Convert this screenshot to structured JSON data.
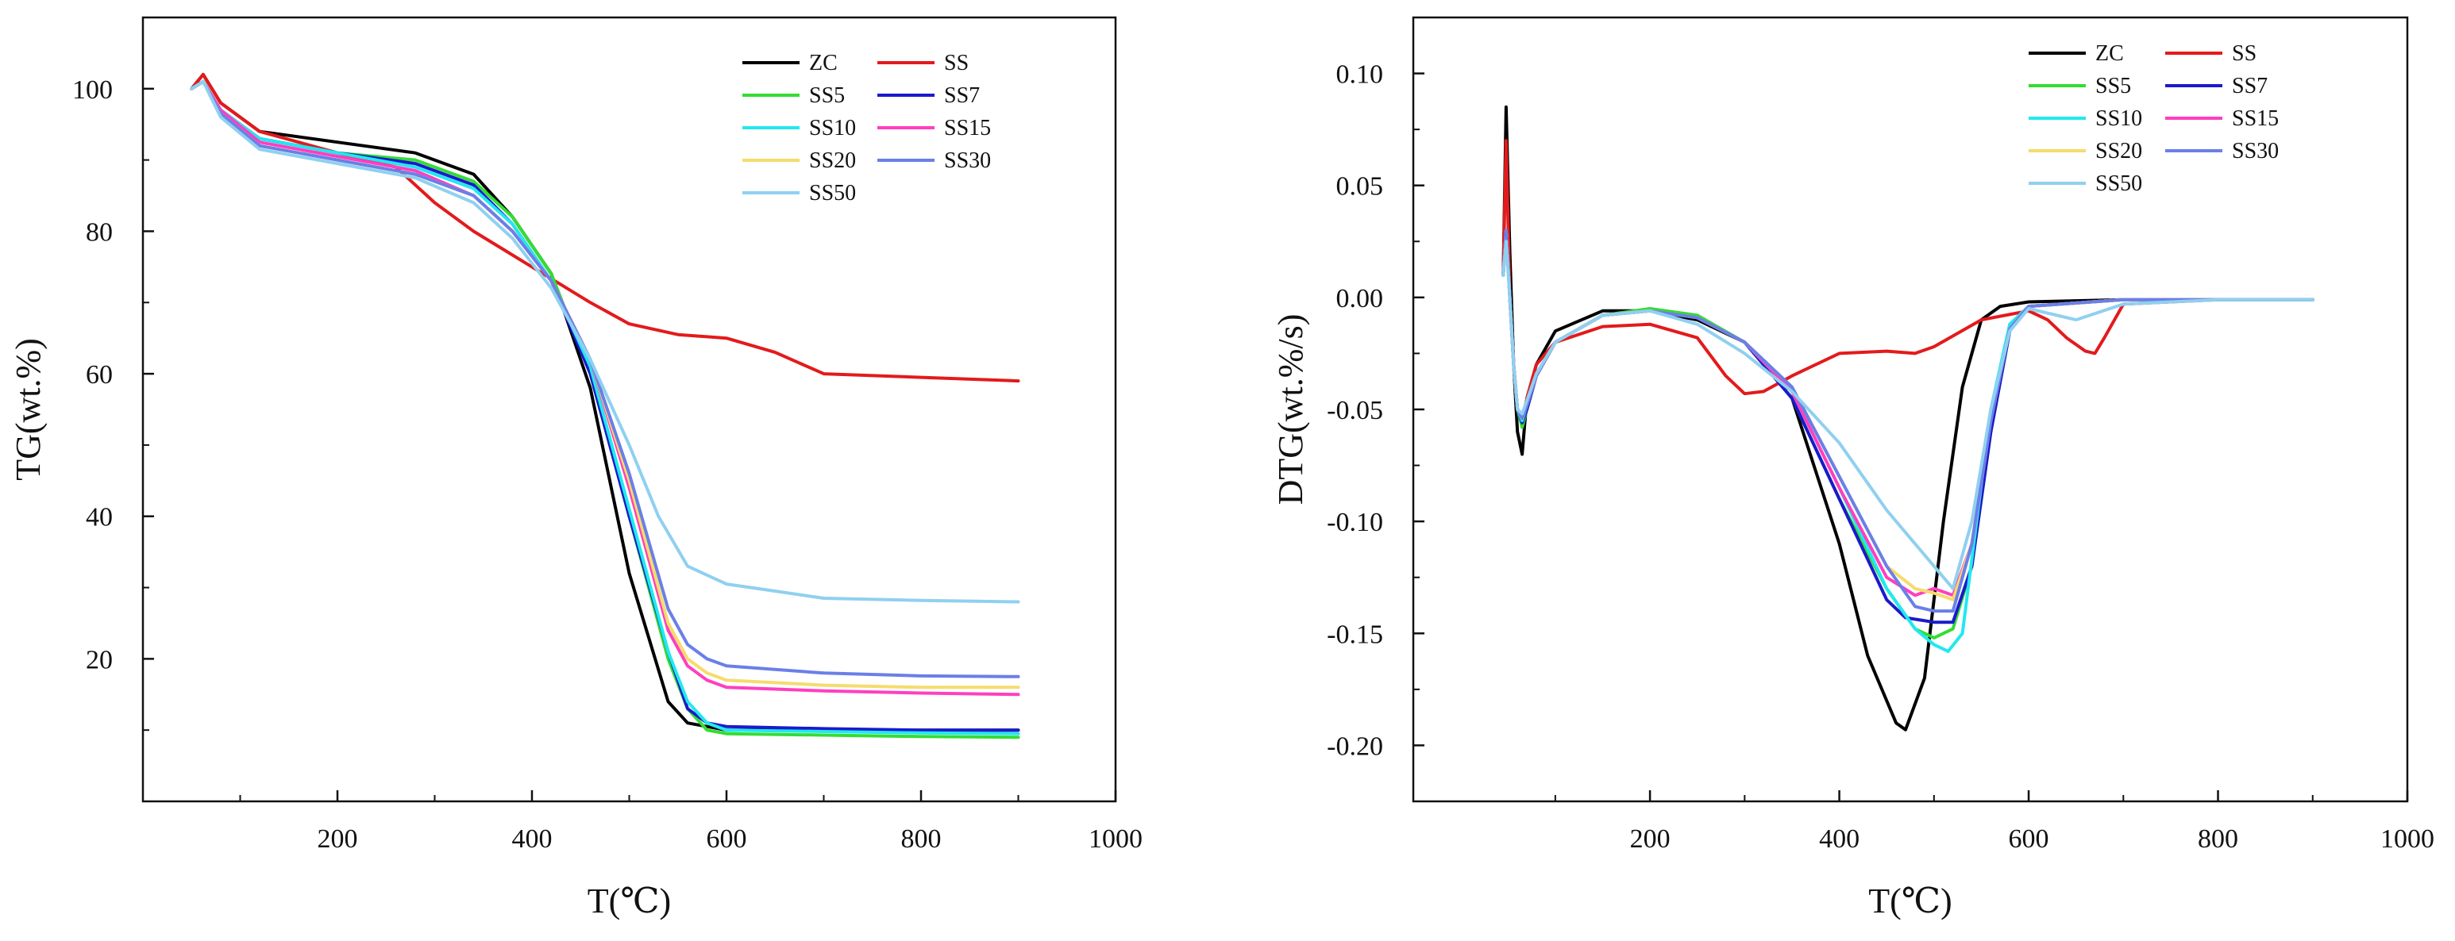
{
  "chart_data": [
    {
      "type": "line",
      "title": "",
      "xlabel": "T(℃)",
      "ylabel": "TG(wt.%)",
      "xlim": [
        0,
        1000
      ],
      "ylim": [
        0,
        110
      ],
      "xticks": [
        200,
        400,
        600,
        800,
        1000
      ],
      "yticks": [
        20,
        40,
        60,
        80,
        100
      ],
      "xtick_labels": [
        "200",
        "400",
        "600",
        "800",
        "1000"
      ],
      "ytick_labels": [
        "20",
        "40",
        "60",
        "80",
        "100"
      ],
      "grid": false,
      "legend_position": "top-right",
      "series": [
        {
          "name": "ZC",
          "color": "#000000",
          "x": [
            50,
            62,
            80,
            120,
            200,
            280,
            340,
            380,
            420,
            460,
            500,
            540,
            560,
            580,
            600,
            700,
            800,
            900
          ],
          "y": [
            100,
            102,
            98,
            94,
            92.5,
            91,
            88,
            82,
            74,
            58,
            32,
            14,
            11,
            10.5,
            10,
            10,
            10,
            10
          ]
        },
        {
          "name": "SS",
          "color": "#e31a1c",
          "x": [
            50,
            62,
            80,
            120,
            200,
            260,
            300,
            340,
            400,
            460,
            500,
            550,
            600,
            650,
            700,
            800,
            900
          ],
          "y": [
            100,
            102,
            98,
            94,
            91,
            89,
            84,
            80,
            75,
            70,
            67,
            65.5,
            65,
            63,
            60,
            59.5,
            59
          ]
        },
        {
          "name": "SS5",
          "color": "#33dd33",
          "x": [
            50,
            62,
            80,
            120,
            200,
            280,
            340,
            380,
            420,
            460,
            500,
            540,
            560,
            580,
            600,
            700,
            800,
            900
          ],
          "y": [
            100,
            101,
            97,
            93,
            91,
            90,
            87,
            82,
            74,
            60,
            40,
            20,
            13,
            10,
            9.5,
            9.3,
            9.1,
            9
          ]
        },
        {
          "name": "SS7",
          "color": "#1a1acc",
          "x": [
            50,
            62,
            80,
            120,
            200,
            280,
            340,
            380,
            420,
            460,
            500,
            540,
            560,
            580,
            600,
            700,
            800,
            900
          ],
          "y": [
            100,
            101,
            97,
            93,
            91,
            89.5,
            86.5,
            81,
            73,
            60,
            40,
            21,
            13,
            11,
            10.5,
            10.2,
            10,
            10
          ]
        },
        {
          "name": "SS10",
          "color": "#22e8f0",
          "x": [
            50,
            62,
            80,
            120,
            200,
            280,
            340,
            380,
            420,
            460,
            500,
            540,
            560,
            580,
            600,
            700,
            800,
            900
          ],
          "y": [
            100,
            101,
            97,
            93,
            91,
            89,
            86,
            81,
            73,
            61,
            41,
            21,
            14,
            11,
            10,
            9.8,
            9.6,
            9.5
          ]
        },
        {
          "name": "SS15",
          "color": "#ff3fbf",
          "x": [
            50,
            62,
            80,
            120,
            200,
            280,
            340,
            380,
            420,
            460,
            500,
            540,
            560,
            580,
            600,
            700,
            800,
            900
          ],
          "y": [
            100,
            101,
            97,
            92.5,
            90.5,
            88.5,
            85,
            80,
            73,
            62,
            44,
            24,
            19,
            17,
            16,
            15.5,
            15.2,
            15
          ]
        },
        {
          "name": "SS20",
          "color": "#f5dc6c",
          "x": [
            50,
            62,
            80,
            120,
            200,
            280,
            340,
            380,
            420,
            460,
            500,
            540,
            560,
            580,
            600,
            700,
            800,
            900
          ],
          "y": [
            100,
            101,
            96.5,
            92,
            90,
            88,
            85,
            80,
            73,
            62,
            45,
            25,
            20,
            18,
            17,
            16.3,
            16,
            16
          ]
        },
        {
          "name": "SS30",
          "color": "#6a7fe8",
          "x": [
            50,
            62,
            80,
            120,
            200,
            280,
            340,
            380,
            420,
            460,
            500,
            540,
            560,
            580,
            600,
            700,
            800,
            900
          ],
          "y": [
            100,
            101,
            96.5,
            92,
            90,
            88,
            85,
            80,
            73,
            62,
            46,
            27,
            22,
            20,
            19,
            18,
            17.6,
            17.5
          ]
        },
        {
          "name": "SS50",
          "color": "#8fd0f0",
          "x": [
            50,
            62,
            80,
            120,
            200,
            280,
            340,
            380,
            420,
            460,
            500,
            530,
            560,
            600,
            650,
            700,
            800,
            900
          ],
          "y": [
            100,
            101,
            96,
            91.5,
            89.5,
            87.5,
            84,
            79,
            72,
            62,
            50,
            40,
            33,
            30.5,
            29.5,
            28.5,
            28.2,
            28
          ]
        }
      ]
    },
    {
      "type": "line",
      "title": "",
      "xlabel": "T(℃)",
      "ylabel": "DTG(wt.%/s)",
      "xlim": [
        -50,
        1000
      ],
      "ylim": [
        -0.225,
        0.125
      ],
      "xticks": [
        200,
        400,
        600,
        800,
        1000
      ],
      "yticks": [
        -0.2,
        -0.15,
        -0.1,
        -0.05,
        0.0,
        0.05,
        0.1
      ],
      "xtick_labels": [
        "200",
        "400",
        "600",
        "800",
        "1000"
      ],
      "ytick_labels": [
        "-0.20",
        "-0.15",
        "-0.10",
        "-0.05",
        "0.00",
        "0.05",
        "0.10"
      ],
      "grid": false,
      "legend_position": "top-right",
      "series": [
        {
          "name": "ZC",
          "color": "#000000",
          "x": [
            45,
            48,
            52,
            56,
            60,
            65,
            70,
            80,
            100,
            150,
            200,
            250,
            300,
            350,
            400,
            430,
            460,
            470,
            490,
            510,
            530,
            550,
            570,
            600,
            700,
            800,
            900
          ],
          "y": [
            0.01,
            0.085,
            0.02,
            -0.03,
            -0.06,
            -0.07,
            -0.045,
            -0.03,
            -0.015,
            -0.006,
            -0.006,
            -0.01,
            -0.02,
            -0.045,
            -0.11,
            -0.16,
            -0.19,
            -0.193,
            -0.17,
            -0.1,
            -0.04,
            -0.01,
            -0.004,
            -0.002,
            -0.001,
            -0.001,
            -0.001
          ]
        },
        {
          "name": "SS",
          "color": "#e31a1c",
          "x": [
            45,
            48,
            52,
            56,
            60,
            65,
            70,
            80,
            100,
            150,
            200,
            250,
            280,
            300,
            320,
            350,
            400,
            450,
            480,
            500,
            550,
            600,
            620,
            640,
            660,
            670,
            680,
            700,
            800,
            900
          ],
          "y": [
            0.01,
            0.07,
            0.0,
            -0.03,
            -0.05,
            -0.055,
            -0.045,
            -0.03,
            -0.02,
            -0.013,
            -0.012,
            -0.018,
            -0.035,
            -0.043,
            -0.042,
            -0.035,
            -0.025,
            -0.024,
            -0.025,
            -0.022,
            -0.01,
            -0.006,
            -0.01,
            -0.018,
            -0.024,
            -0.025,
            -0.018,
            -0.003,
            -0.001,
            -0.001
          ]
        },
        {
          "name": "SS5",
          "color": "#33dd33",
          "x": [
            45,
            48,
            52,
            56,
            60,
            65,
            70,
            80,
            100,
            150,
            200,
            250,
            300,
            350,
            400,
            450,
            480,
            500,
            520,
            540,
            560,
            580,
            600,
            700,
            800,
            900
          ],
          "y": [
            0.01,
            0.03,
            0.0,
            -0.03,
            -0.05,
            -0.058,
            -0.05,
            -0.035,
            -0.02,
            -0.008,
            -0.005,
            -0.008,
            -0.02,
            -0.045,
            -0.09,
            -0.13,
            -0.148,
            -0.152,
            -0.148,
            -0.12,
            -0.06,
            -0.015,
            -0.004,
            -0.001,
            -0.001,
            -0.001
          ]
        },
        {
          "name": "SS7",
          "color": "#1a1acc",
          "x": [
            45,
            48,
            52,
            56,
            60,
            65,
            70,
            80,
            100,
            150,
            200,
            250,
            300,
            350,
            400,
            450,
            470,
            500,
            520,
            540,
            560,
            580,
            600,
            700,
            800,
            900
          ],
          "y": [
            0.01,
            0.03,
            0.0,
            -0.03,
            -0.05,
            -0.056,
            -0.05,
            -0.035,
            -0.02,
            -0.008,
            -0.006,
            -0.009,
            -0.02,
            -0.045,
            -0.09,
            -0.135,
            -0.143,
            -0.145,
            -0.145,
            -0.12,
            -0.06,
            -0.015,
            -0.004,
            -0.001,
            -0.001,
            -0.001
          ]
        },
        {
          "name": "SS10",
          "color": "#22e8f0",
          "x": [
            45,
            48,
            52,
            56,
            60,
            65,
            70,
            80,
            100,
            150,
            200,
            250,
            300,
            350,
            400,
            450,
            480,
            500,
            515,
            530,
            545,
            560,
            580,
            600,
            700,
            800,
            900
          ],
          "y": [
            0.01,
            0.03,
            0.0,
            -0.03,
            -0.05,
            -0.055,
            -0.048,
            -0.035,
            -0.02,
            -0.008,
            -0.006,
            -0.009,
            -0.02,
            -0.042,
            -0.085,
            -0.13,
            -0.148,
            -0.155,
            -0.158,
            -0.15,
            -0.1,
            -0.05,
            -0.012,
            -0.004,
            -0.001,
            -0.001,
            -0.001
          ]
        },
        {
          "name": "SS15",
          "color": "#ff3fbf",
          "x": [
            45,
            48,
            52,
            56,
            60,
            65,
            70,
            80,
            100,
            150,
            200,
            250,
            300,
            350,
            400,
            450,
            480,
            500,
            520,
            540,
            560,
            580,
            600,
            700,
            800,
            900
          ],
          "y": [
            0.01,
            0.03,
            0.0,
            -0.03,
            -0.05,
            -0.054,
            -0.048,
            -0.035,
            -0.02,
            -0.008,
            -0.006,
            -0.009,
            -0.02,
            -0.042,
            -0.085,
            -0.125,
            -0.133,
            -0.13,
            -0.133,
            -0.11,
            -0.055,
            -0.014,
            -0.004,
            -0.001,
            -0.001,
            -0.001
          ]
        },
        {
          "name": "SS20",
          "color": "#f5dc6c",
          "x": [
            45,
            48,
            52,
            56,
            60,
            65,
            70,
            80,
            100,
            150,
            200,
            250,
            300,
            350,
            400,
            450,
            480,
            500,
            520,
            540,
            560,
            580,
            600,
            700,
            800,
            900
          ],
          "y": [
            0.01,
            0.03,
            0.0,
            -0.03,
            -0.05,
            -0.054,
            -0.048,
            -0.035,
            -0.02,
            -0.008,
            -0.006,
            -0.009,
            -0.02,
            -0.04,
            -0.08,
            -0.12,
            -0.13,
            -0.132,
            -0.135,
            -0.11,
            -0.055,
            -0.014,
            -0.004,
            -0.001,
            -0.001,
            -0.001
          ]
        },
        {
          "name": "SS30",
          "color": "#6a7fe8",
          "x": [
            45,
            48,
            52,
            56,
            60,
            65,
            70,
            80,
            100,
            150,
            200,
            250,
            300,
            350,
            400,
            450,
            480,
            500,
            520,
            540,
            560,
            580,
            600,
            700,
            800,
            900
          ],
          "y": [
            0.01,
            0.03,
            0.0,
            -0.03,
            -0.05,
            -0.054,
            -0.048,
            -0.035,
            -0.02,
            -0.008,
            -0.006,
            -0.009,
            -0.02,
            -0.04,
            -0.08,
            -0.12,
            -0.138,
            -0.14,
            -0.14,
            -0.11,
            -0.055,
            -0.014,
            -0.004,
            -0.001,
            -0.001,
            -0.001
          ]
        },
        {
          "name": "SS50",
          "color": "#8fd0f0",
          "x": [
            45,
            48,
            52,
            56,
            60,
            65,
            70,
            80,
            100,
            150,
            200,
            250,
            300,
            350,
            400,
            450,
            480,
            500,
            520,
            540,
            560,
            580,
            600,
            650,
            700,
            800,
            900
          ],
          "y": [
            0.01,
            0.025,
            0.0,
            -0.03,
            -0.05,
            -0.052,
            -0.046,
            -0.034,
            -0.02,
            -0.008,
            -0.006,
            -0.012,
            -0.025,
            -0.042,
            -0.065,
            -0.095,
            -0.11,
            -0.12,
            -0.13,
            -0.1,
            -0.05,
            -0.015,
            -0.005,
            -0.01,
            -0.003,
            -0.001,
            -0.001
          ]
        }
      ]
    }
  ]
}
